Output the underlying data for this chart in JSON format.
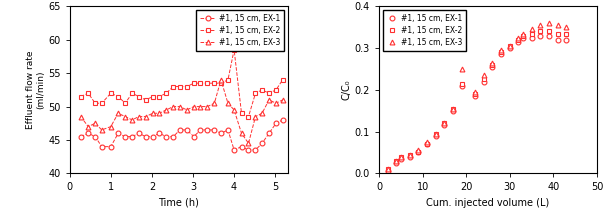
{
  "color": "#FF3030",
  "left_xlabel": "Time (h)",
  "left_ylabel": "Effluent flow rate\n(ml/min)",
  "left_xlim": [
    0,
    5.3
  ],
  "left_ylim": [
    40,
    65
  ],
  "left_yticks": [
    40,
    45,
    50,
    55,
    60,
    65
  ],
  "left_xticks": [
    0,
    1,
    2,
    3,
    4,
    5
  ],
  "ex1_time": [
    0.27,
    0.45,
    0.62,
    0.78,
    1.0,
    1.18,
    1.35,
    1.52,
    1.68,
    1.85,
    2.02,
    2.18,
    2.35,
    2.52,
    2.68,
    2.85,
    3.02,
    3.18,
    3.35,
    3.52,
    3.68,
    3.85,
    4.0,
    4.18,
    4.35,
    4.52,
    4.68,
    4.85,
    5.02,
    5.18
  ],
  "ex1_flow": [
    45.5,
    46.0,
    45.5,
    44.0,
    44.0,
    46.0,
    45.5,
    45.5,
    46.0,
    45.5,
    45.5,
    46.0,
    45.5,
    45.5,
    46.5,
    46.5,
    45.5,
    46.5,
    46.5,
    46.5,
    46.0,
    46.5,
    43.5,
    44.0,
    43.5,
    43.5,
    44.5,
    46.0,
    47.5,
    48.0
  ],
  "ex2_time": [
    0.27,
    0.45,
    0.62,
    0.78,
    1.0,
    1.18,
    1.35,
    1.52,
    1.68,
    1.85,
    2.02,
    2.18,
    2.35,
    2.52,
    2.68,
    2.85,
    3.02,
    3.18,
    3.35,
    3.52,
    3.68,
    3.85,
    4.0,
    4.18,
    4.35,
    4.52,
    4.68,
    4.85,
    5.02,
    5.18
  ],
  "ex2_flow": [
    51.5,
    52.0,
    50.5,
    50.5,
    52.0,
    51.5,
    50.5,
    52.0,
    51.5,
    51.0,
    51.5,
    51.5,
    52.0,
    53.0,
    53.0,
    53.0,
    53.5,
    53.5,
    53.5,
    53.5,
    53.5,
    54.0,
    58.5,
    49.0,
    48.5,
    52.0,
    52.5,
    52.0,
    52.5,
    54.0
  ],
  "ex3_time": [
    0.27,
    0.45,
    0.62,
    0.78,
    1.0,
    1.18,
    1.35,
    1.52,
    1.68,
    1.85,
    2.02,
    2.18,
    2.35,
    2.52,
    2.68,
    2.85,
    3.02,
    3.18,
    3.35,
    3.52,
    3.68,
    3.85,
    4.0,
    4.18,
    4.35,
    4.52,
    4.68,
    4.85,
    5.02,
    5.18
  ],
  "ex3_flow": [
    48.5,
    47.0,
    47.5,
    46.5,
    47.0,
    49.0,
    48.5,
    48.0,
    48.5,
    48.5,
    49.0,
    49.0,
    49.5,
    50.0,
    50.0,
    49.5,
    50.0,
    50.0,
    50.0,
    50.5,
    54.0,
    50.5,
    49.5,
    46.0,
    44.5,
    48.5,
    49.0,
    51.0,
    50.5,
    51.0
  ],
  "right_xlabel": "Cum. injected volume (L)",
  "right_ylabel": "C/C₀",
  "right_xlim": [
    0,
    50
  ],
  "right_ylim": [
    0.0,
    0.4
  ],
  "right_yticks": [
    0.0,
    0.1,
    0.2,
    0.3,
    0.4
  ],
  "right_xticks": [
    0,
    10,
    20,
    30,
    40,
    50
  ],
  "r_ex1_vol": [
    2,
    4,
    5,
    7,
    9,
    11,
    13,
    15,
    17,
    19,
    22,
    24,
    26,
    28,
    30,
    32,
    33,
    35,
    37,
    39,
    41,
    43
  ],
  "r_ex1_cc0": [
    0.005,
    0.025,
    0.035,
    0.04,
    0.05,
    0.07,
    0.09,
    0.115,
    0.15,
    0.21,
    0.185,
    0.22,
    0.255,
    0.285,
    0.3,
    0.315,
    0.325,
    0.325,
    0.33,
    0.33,
    0.32,
    0.32
  ],
  "r_ex2_vol": [
    2,
    4,
    5,
    7,
    9,
    11,
    13,
    15,
    17,
    19,
    22,
    24,
    26,
    28,
    30,
    32,
    33,
    35,
    37,
    39,
    41,
    43
  ],
  "r_ex2_cc0": [
    0.01,
    0.03,
    0.04,
    0.045,
    0.05,
    0.07,
    0.095,
    0.12,
    0.155,
    0.215,
    0.19,
    0.225,
    0.26,
    0.29,
    0.305,
    0.32,
    0.33,
    0.335,
    0.34,
    0.34,
    0.335,
    0.335
  ],
  "r_ex3_vol": [
    2,
    4,
    5,
    7,
    9,
    11,
    13,
    15,
    17,
    19,
    22,
    24,
    26,
    28,
    30,
    32,
    33,
    35,
    37,
    39,
    41,
    43
  ],
  "r_ex3_cc0": [
    0.01,
    0.03,
    0.04,
    0.045,
    0.055,
    0.075,
    0.095,
    0.12,
    0.155,
    0.25,
    0.195,
    0.235,
    0.265,
    0.295,
    0.305,
    0.325,
    0.335,
    0.345,
    0.355,
    0.36,
    0.355,
    0.35
  ],
  "legend_labels": [
    "#1, 15 cm, EX-1",
    "#1, 15 cm, EX-2",
    "#1, 15 cm, EX-3"
  ]
}
